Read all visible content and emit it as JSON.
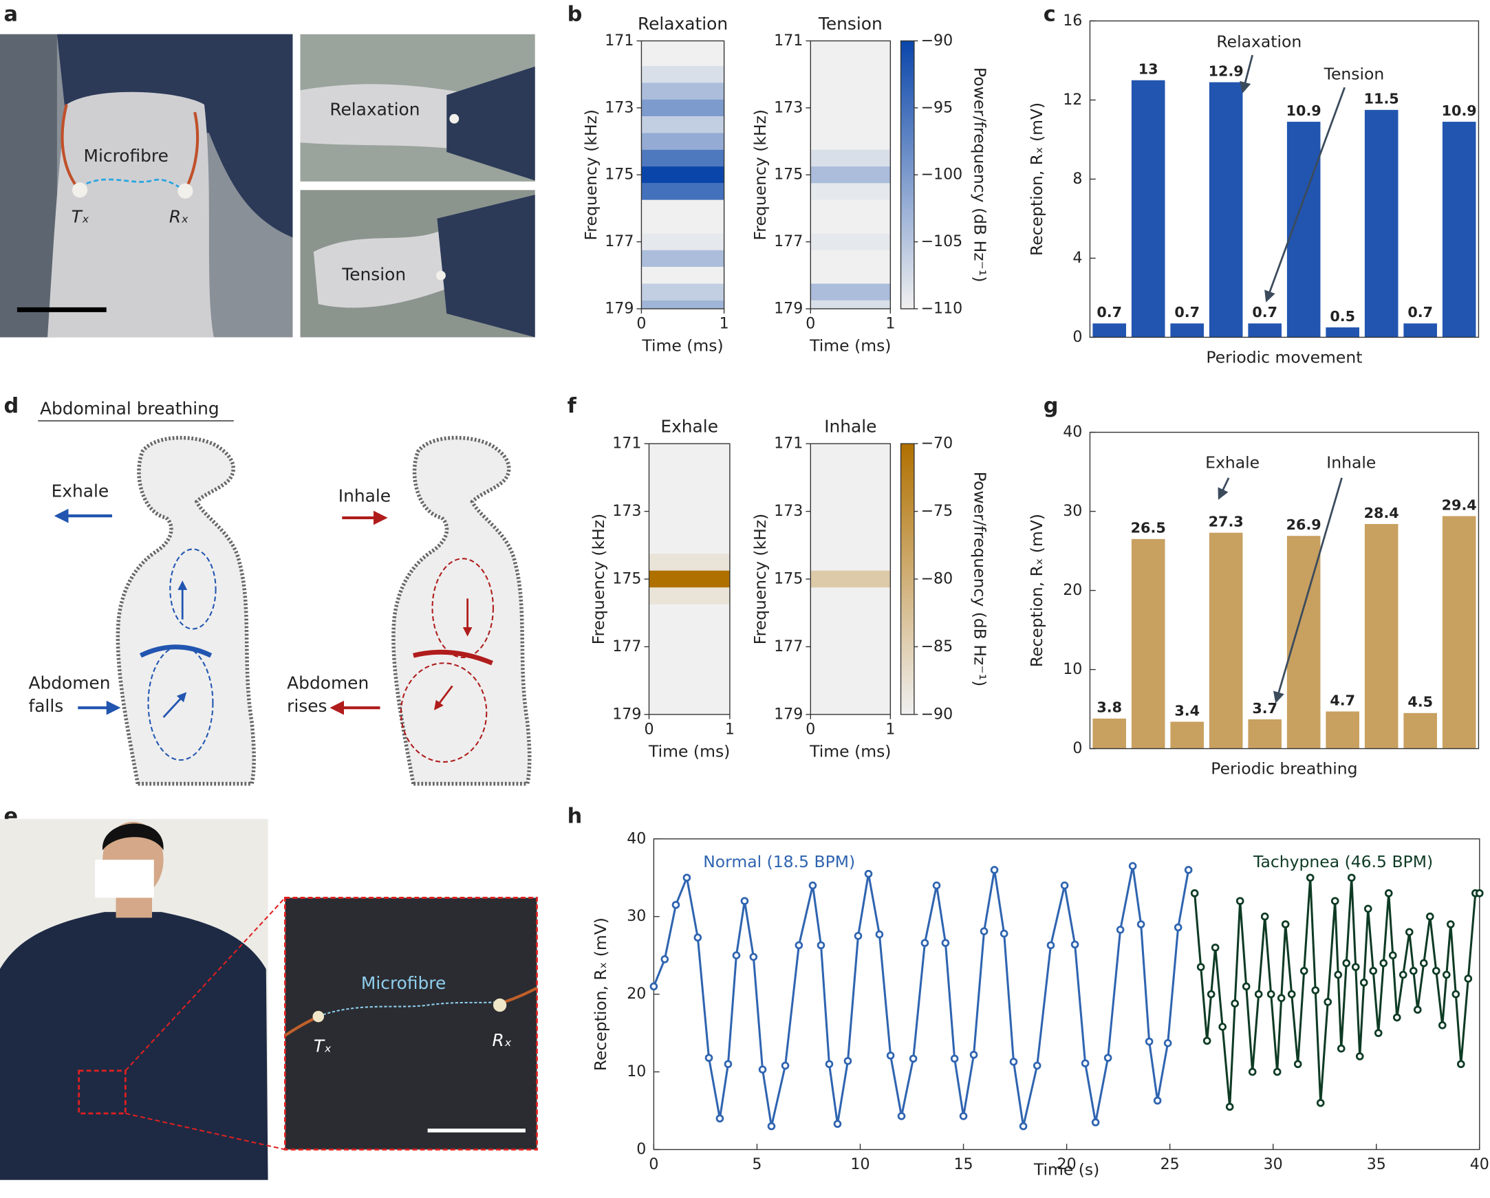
{
  "panel_labels": [
    "a",
    "b",
    "c",
    "d",
    "e",
    "f",
    "g",
    "h"
  ],
  "photo_a": {
    "fibre_label": "Microfibre",
    "tx": "Tₓ",
    "rx": "Rₓ",
    "top_label": "Relaxation",
    "bottom_label": "Tension"
  },
  "diagram_d": {
    "title": "Abdominal breathing",
    "left_arrow": "Exhale",
    "left_abdomen": [
      "Abdomen",
      "falls"
    ],
    "right_arrow": "Inhale",
    "right_abdomen": [
      "Abdomen",
      "rises"
    ]
  },
  "photo_e": {
    "fibre_label": "Microfibre",
    "tx": "Tₓ",
    "rx": "Rₓ"
  },
  "chart_data": [
    {
      "type": "heatmap",
      "title": "Relaxation",
      "xlabel": "Time (ms)",
      "ylabel": "Frequency (kHz)",
      "xlim": [
        0,
        1
      ],
      "xticks": [
        0,
        1
      ],
      "ylim": [
        179,
        171
      ],
      "yticks": [
        171,
        173,
        175,
        177,
        179
      ],
      "frequencies": [
        171,
        171.5,
        172,
        172.5,
        173,
        173.5,
        174,
        174.5,
        175,
        175.5,
        176,
        176.5,
        177,
        177.5,
        178,
        178.5,
        179
      ],
      "values": [
        -110,
        -110,
        -108,
        -104,
        -100,
        -106,
        -102,
        -96,
        -90,
        -95,
        -110,
        -110,
        -109,
        -104,
        -110,
        -106,
        -103
      ],
      "clim": [
        -110,
        -90
      ],
      "colormap": [
        "#f0f0f0",
        "#0a46aa"
      ]
    },
    {
      "type": "heatmap",
      "title": "Tension",
      "xlabel": "Time (ms)",
      "ylabel": "Frequency (kHz)",
      "xlim": [
        0,
        1
      ],
      "xticks": [
        0,
        1
      ],
      "ylim": [
        179,
        171
      ],
      "yticks": [
        171,
        173,
        175,
        177,
        179
      ],
      "frequencies": [
        171,
        171.5,
        172,
        172.5,
        173,
        173.5,
        174,
        174.5,
        175,
        175.5,
        176,
        176.5,
        177,
        177.5,
        178,
        178.5,
        179
      ],
      "values": [
        -110,
        -110,
        -110,
        -110,
        -110,
        -110,
        -110,
        -108,
        -104,
        -109,
        -110,
        -110,
        -109,
        -110,
        -110,
        -104,
        -108
      ],
      "clim": [
        -110,
        -90
      ],
      "colormap": [
        "#f0f0f0",
        "#0a46aa"
      ],
      "colorbar": {
        "label": "Power/frequency (dB Hz⁻¹)",
        "ticks": [
          {
            "value": -90,
            "label": "−90"
          },
          {
            "value": -95,
            "label": "−95"
          },
          {
            "value": -100,
            "label": "−100"
          },
          {
            "value": -105,
            "label": "−105"
          },
          {
            "value": -110,
            "label": "−110"
          }
        ]
      }
    },
    {
      "type": "bar",
      "xlabel": "Periodic movement",
      "ylabel": "Reception, Rₓ (mV)",
      "values": [
        0.7,
        13,
        0.7,
        12.9,
        0.7,
        10.9,
        0.5,
        11.5,
        0.7,
        10.9
      ],
      "color": "#2155b0",
      "ylim": [
        0,
        16
      ],
      "yticks": [
        0,
        4,
        8,
        12,
        16
      ],
      "annotations": [
        "Relaxation",
        "Tension"
      ]
    },
    {
      "type": "heatmap",
      "title": "Exhale",
      "xlabel": "Time (ms)",
      "ylabel": "Frequency (kHz)",
      "xlim": [
        0,
        1
      ],
      "xticks": [
        0,
        1
      ],
      "ylim": [
        179,
        171
      ],
      "yticks": [
        171,
        173,
        175,
        177,
        179
      ],
      "frequencies": [
        171,
        171.5,
        172,
        172.5,
        173,
        173.5,
        174,
        174.5,
        175,
        175.5,
        176,
        176.5,
        177,
        177.5,
        178,
        178.5,
        179
      ],
      "values": [
        -90,
        -90,
        -90,
        -90,
        -90,
        -90,
        -90,
        -88,
        -70,
        -88,
        -90,
        -90,
        -90,
        -90,
        -90,
        -90,
        -90
      ],
      "clim": [
        -90,
        -70
      ],
      "colormap": [
        "#f0f0f0",
        "#b07000"
      ]
    },
    {
      "type": "heatmap",
      "title": "Inhale",
      "xlabel": "Time (ms)",
      "ylabel": "Frequency (kHz)",
      "xlim": [
        0,
        1
      ],
      "xticks": [
        0,
        1
      ],
      "ylim": [
        179,
        171
      ],
      "yticks": [
        171,
        173,
        175,
        177,
        179
      ],
      "frequencies": [
        171,
        171.5,
        172,
        172.5,
        173,
        173.5,
        174,
        174.5,
        175,
        175.5,
        176,
        176.5,
        177,
        177.5,
        178,
        178.5,
        179
      ],
      "values": [
        -90,
        -90,
        -90,
        -90,
        -90,
        -90,
        -90,
        -90,
        -84,
        -90,
        -90,
        -90,
        -90,
        -90,
        -90,
        -90,
        -90
      ],
      "clim": [
        -90,
        -70
      ],
      "colormap": [
        "#f0f0f0",
        "#b07000"
      ],
      "colorbar": {
        "label": "Power/frequency (dB Hz⁻¹)",
        "ticks": [
          {
            "value": -70,
            "label": "−70"
          },
          {
            "value": -75,
            "label": "−75"
          },
          {
            "value": -80,
            "label": "−80"
          },
          {
            "value": -85,
            "label": "−85"
          },
          {
            "value": -90,
            "label": "−90"
          }
        ]
      }
    },
    {
      "type": "bar",
      "xlabel": "Periodic breathing",
      "ylabel": "Reception, Rₓ (mV)",
      "values": [
        3.8,
        26.5,
        3.4,
        27.3,
        3.7,
        26.9,
        4.7,
        28.4,
        4.5,
        29.4
      ],
      "color": "#c8a060",
      "ylim": [
        0,
        40
      ],
      "yticks": [
        0,
        10,
        20,
        30,
        40
      ],
      "annotations": [
        "Exhale",
        "Inhale"
      ]
    },
    {
      "type": "line",
      "xlabel": "Time (s)",
      "ylabel": "Reception, Rₓ (mV)",
      "xlim": [
        0,
        40
      ],
      "xticks": [
        0,
        5,
        10,
        15,
        20,
        25,
        30,
        35,
        40
      ],
      "ylim": [
        0,
        40
      ],
      "yticks": [
        0,
        10,
        20,
        30,
        40
      ],
      "series": [
        {
          "name": "Normal (18.5 BPM)",
          "color": "#2f64b0",
          "x": [
            0,
            0.53,
            1.07,
            1.6,
            2.13,
            2.67,
            3.2,
            3.6,
            4.0,
            4.4,
            4.83,
            5.27,
            5.7,
            6.37,
            7.03,
            7.7,
            8.1,
            8.5,
            8.9,
            9.4,
            9.9,
            10.4,
            10.93,
            11.47,
            12.0,
            12.57,
            13.13,
            13.7,
            14.13,
            14.57,
            15.0,
            15.5,
            16.0,
            16.5,
            16.97,
            17.43,
            17.9,
            18.57,
            19.23,
            19.9,
            20.4,
            20.9,
            21.4,
            22.0,
            22.6,
            23.2,
            23.6,
            24.0,
            24.4,
            24.9,
            25.4,
            25.9
          ],
          "values": [
            21,
            24.5,
            31.5,
            35,
            27.3,
            11.8,
            4,
            11,
            25,
            32,
            24.8,
            10.3,
            3,
            10.8,
            26.3,
            34,
            26.3,
            11,
            3.3,
            11.4,
            27.5,
            35.5,
            27.7,
            12.1,
            4.3,
            11.7,
            26.6,
            34,
            26.6,
            11.7,
            4.3,
            12.2,
            28.1,
            36,
            27.8,
            11.3,
            3,
            10.8,
            26.3,
            34,
            26.4,
            11.1,
            3.5,
            11.8,
            28.3,
            36.5,
            29,
            13.9,
            6.3,
            13.7,
            28.6,
            36
          ]
        },
        {
          "name": "Tachypnea (46.5 BPM)",
          "color": "#0e3b24",
          "x": [
            26.2,
            26.5,
            26.8,
            27.0,
            27.2,
            27.55,
            27.9,
            28.15,
            28.4,
            28.7,
            29.0,
            29.3,
            29.6,
            29.9,
            30.2,
            30.4,
            30.6,
            30.9,
            31.2,
            31.5,
            31.8,
            32.05,
            32.3,
            32.65,
            33.0,
            33.15,
            33.3,
            33.55,
            33.8,
            34.0,
            34.2,
            34.4,
            34.6,
            34.85,
            35.1,
            35.35,
            35.6,
            35.8,
            36.0,
            36.3,
            36.6,
            36.8,
            37.0,
            37.3,
            37.6,
            37.9,
            38.2,
            38.4,
            38.6,
            38.85,
            39.1,
            39.45,
            39.8,
            40.0
          ],
          "values": [
            33,
            23.5,
            14,
            20,
            26,
            15.8,
            5.5,
            18.8,
            32,
            21,
            10,
            20,
            30,
            20,
            10,
            19.5,
            29,
            20,
            11,
            23,
            35,
            20.5,
            6,
            19,
            32,
            22.5,
            13,
            24,
            35,
            23.5,
            12,
            21.5,
            31,
            23,
            15,
            24,
            33,
            25,
            17,
            22.5,
            28,
            23,
            18,
            24,
            30,
            23,
            16,
            22.5,
            29,
            20,
            11,
            22,
            33,
            33
          ]
        }
      ]
    }
  ]
}
